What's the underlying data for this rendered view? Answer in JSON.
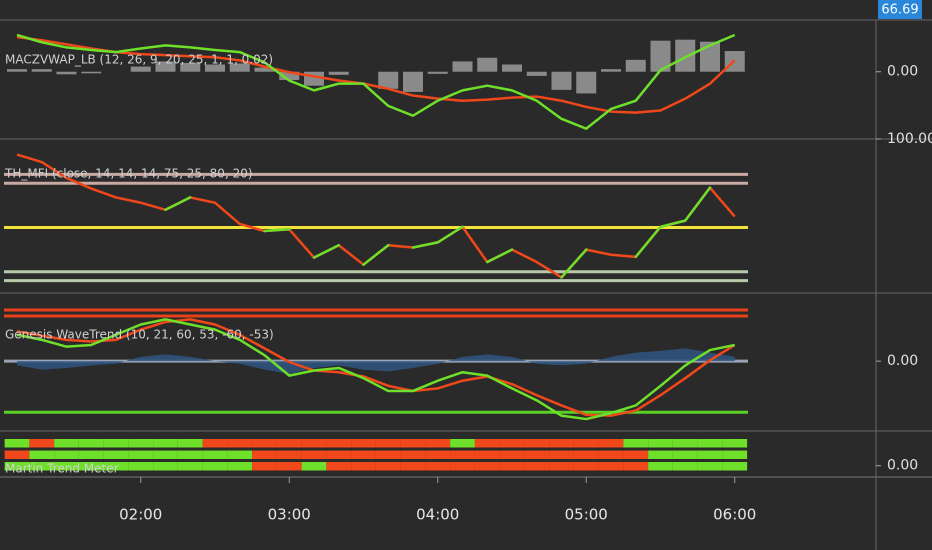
{
  "chart_data": [
    {
      "type": "line",
      "title": "MACZVWAP_LB (12, 26, 9, 20, 25, 1, 1, 0.02)",
      "last_label": "66.69",
      "ylim": [
        -1.3,
        1.0
      ],
      "yticks": [
        {
          "value": 0,
          "label": "0.00"
        }
      ],
      "series": [
        {
          "style": "bar",
          "color": "#8a8a8a",
          "values": [
            0.05,
            0.05,
            -0.05,
            -0.03,
            0,
            0.1,
            0.2,
            0.17,
            0.14,
            0.16,
            0.08,
            -0.16,
            -0.27,
            -0.06,
            0,
            -0.33,
            -0.39,
            -0.04,
            0.2,
            0.27,
            0.14,
            -0.08,
            -0.35,
            -0.42,
            0.05,
            0.23,
            0.6,
            0.62,
            0.58,
            0.4
          ]
        },
        {
          "style": "line",
          "color": "#f0481a",
          "values": [
            0.67,
            0.61,
            0.53,
            0.45,
            0.38,
            0.34,
            0.32,
            0.3,
            0.28,
            0.22,
            0.1,
            -0.01,
            -0.09,
            -0.17,
            -0.23,
            -0.33,
            -0.46,
            -0.52,
            -0.56,
            -0.54,
            -0.5,
            -0.48,
            -0.56,
            -0.68,
            -0.77,
            -0.79,
            -0.75,
            -0.52,
            -0.23,
            0.22
          ]
        },
        {
          "style": "line",
          "color": "#6ee02a",
          "values": [
            0.71,
            0.57,
            0.47,
            0.42,
            0.38,
            0.45,
            0.51,
            0.47,
            0.42,
            0.38,
            0.18,
            -0.17,
            -0.36,
            -0.23,
            -0.23,
            -0.66,
            -0.85,
            -0.56,
            -0.36,
            -0.27,
            -0.36,
            -0.56,
            -0.91,
            -1.1,
            -0.72,
            -0.56,
            0.03,
            0.28,
            0.51,
            0.71
          ]
        }
      ]
    },
    {
      "type": "line",
      "title": "TH_MFI (close, 14, 14, 14, 75, 25, 80, 20)",
      "ylim": [
        13,
        100
      ],
      "yticks": [
        {
          "value": 100,
          "label": "100.00"
        }
      ],
      "hlines": [
        {
          "value": 80,
          "color": "#c9aaa2"
        },
        {
          "value": 75,
          "color": "#c9aaa2"
        },
        {
          "value": 50,
          "color": "#f2e33a"
        },
        {
          "value": 25,
          "color": "#b7c9a8"
        },
        {
          "value": 20,
          "color": "#b7c9a8"
        }
      ],
      "series": [
        {
          "style": "line",
          "color": "#f0481a",
          "up_color": "#6ee02a",
          "values": [
            91.2,
            87,
            78,
            72,
            67,
            64,
            60,
            67,
            64,
            52,
            48,
            49,
            33,
            40,
            29,
            40,
            38.7,
            41.6,
            50.4,
            30.5,
            37.5,
            30.5,
            21.8,
            37.5,
            34.6,
            33.4,
            50.4,
            53.9,
            72.5,
            56.2
          ]
        }
      ]
    },
    {
      "type": "line",
      "title": "Genesis WaveTrend (10, 21, 60, 53, -60, -53)",
      "ylim": [
        -82,
        80
      ],
      "yticks": [
        {
          "value": 0,
          "label": "0.00"
        }
      ],
      "hlines": [
        {
          "value": 60,
          "color": "#e8401a"
        },
        {
          "value": 53,
          "color": "#e8401a"
        },
        {
          "value": 0,
          "color": "#9aa4b4"
        },
        {
          "value": -60,
          "color": "#5ad024"
        }
      ],
      "series": [
        {
          "style": "area",
          "color": "#2f5680",
          "values": [
            -5,
            -10,
            -8,
            -5,
            -3,
            5,
            8,
            5,
            0,
            -3,
            -10,
            -15,
            -8,
            -5,
            -10,
            -12,
            -8,
            -3,
            5,
            8,
            5,
            -3,
            -5,
            -3,
            5,
            10,
            12,
            15,
            10,
            5
          ]
        },
        {
          "style": "line",
          "color": "#f0481a",
          "values": [
            35,
            30,
            25,
            23,
            25,
            37,
            46,
            49,
            43,
            31,
            15,
            -1,
            -11,
            -13,
            -18,
            -29,
            -35,
            -32,
            -23,
            -18,
            -27,
            -40,
            -52,
            -63,
            -64,
            -58,
            -40,
            -20,
            1,
            19
          ]
        },
        {
          "style": "line",
          "color": "#6ee02a",
          "values": [
            31,
            25,
            17,
            19,
            31,
            43,
            49,
            43,
            37,
            25,
            7,
            -17,
            -11,
            -8,
            -20,
            -35,
            -35,
            -23,
            -13,
            -17,
            -32,
            -46,
            -64,
            -68,
            -61,
            -52,
            -29,
            -5,
            13,
            19
          ]
        }
      ]
    },
    {
      "type": "heatmap",
      "title": "Martin Trend Meter",
      "ylim": [
        -0.65,
        2
      ],
      "yticks": [
        {
          "value": 0,
          "label": "0.00"
        }
      ],
      "up_color": "#6ee02a",
      "down_color": "#f0481a",
      "categories": [
        null,
        null,
        null,
        null,
        null,
        "02:00",
        null,
        null,
        null,
        null,
        null,
        "03:00",
        null,
        null,
        null,
        null,
        null,
        "04:00",
        null,
        null,
        null,
        null,
        null,
        "05:00",
        null,
        null,
        null,
        null,
        null,
        "06:00"
      ],
      "series": [
        {
          "values": [
            1,
            -1,
            1,
            1,
            1,
            1,
            1,
            1,
            -1,
            -1,
            -1,
            -1,
            -1,
            -1,
            -1,
            -1,
            -1,
            -1,
            1,
            -1,
            -1,
            -1,
            -1,
            -1,
            -1,
            1,
            1,
            1,
            1,
            1
          ]
        },
        {
          "values": [
            -1,
            1,
            1,
            1,
            1,
            1,
            1,
            1,
            1,
            1,
            -1,
            -1,
            -1,
            -1,
            -1,
            -1,
            -1,
            -1,
            -1,
            -1,
            -1,
            -1,
            -1,
            -1,
            -1,
            -1,
            1,
            1,
            1,
            1
          ]
        },
        {
          "values": [
            1,
            1,
            1,
            1,
            1,
            1,
            1,
            1,
            1,
            1,
            -1,
            -1,
            1,
            -1,
            -1,
            -1,
            -1,
            -1,
            -1,
            -1,
            -1,
            -1,
            -1,
            -1,
            -1,
            -1,
            1,
            1,
            1,
            1
          ]
        }
      ]
    }
  ]
}
